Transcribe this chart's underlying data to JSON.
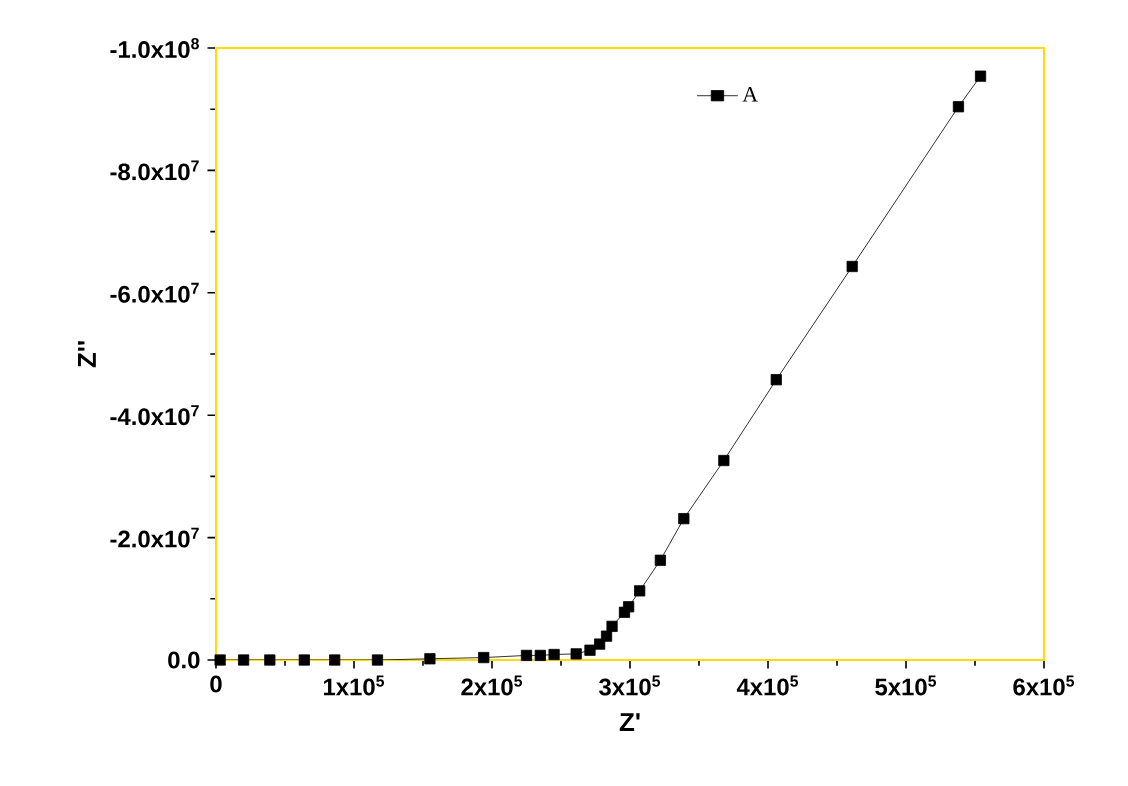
{
  "chart_data": {
    "type": "line",
    "xlabel": "Z'",
    "ylabel": "Z''",
    "x": [
      3000,
      20000,
      39000,
      64000,
      86000,
      117000,
      155000,
      194000,
      225000,
      235000,
      245000,
      261000,
      271000,
      278000,
      283000,
      287000,
      296000,
      299000,
      307000,
      322000,
      339000,
      368000,
      406000,
      461000,
      538000,
      554000
    ],
    "series": [
      {
        "name": "A",
        "color": "#000000",
        "values": [
          0,
          0,
          0,
          0,
          0,
          0,
          -200000,
          -400000,
          -750000,
          -750000,
          -900000,
          -1000000,
          -1600000,
          -2600000,
          -3900000,
          -5500000,
          -7800000,
          -8700000,
          -11300000,
          -16300000,
          -23100000,
          -32600000,
          -45800000,
          -64300000,
          -90400000,
          -95400000
        ]
      }
    ],
    "xlim": [
      0,
      600000
    ],
    "ylim": [
      0,
      -100000000
    ],
    "xticks": [
      0,
      {
        "value": 100000,
        "label": "1x10$^{5}$"
      },
      {
        "value": 200000,
        "label": "2x10$^{5}$"
      },
      {
        "value": 300000,
        "label": "3x10$^{5}$"
      },
      {
        "value": 400000,
        "label": "4x10$^{5}$"
      },
      {
        "value": 500000,
        "label": "5x10$^{5}$"
      },
      {
        "value": 600000,
        "label": "6x10$^{5}$"
      }
    ],
    "yticks": [
      {
        "value": 0,
        "label": "0.0"
      },
      {
        "value": -20000000,
        "label": "-2.0x10$^{7}$"
      },
      {
        "value": -40000000,
        "label": "-4.0x10$^{7}$"
      },
      {
        "value": -60000000,
        "label": "-6.0x10$^{7}$"
      },
      {
        "value": -80000000,
        "label": "-8.0x10$^{7}$"
      },
      {
        "value": -100000000,
        "label": "-1.0x10$^{8}$"
      }
    ],
    "grid": false,
    "legend": "top",
    "marker": "square",
    "line_style": "solid"
  }
}
